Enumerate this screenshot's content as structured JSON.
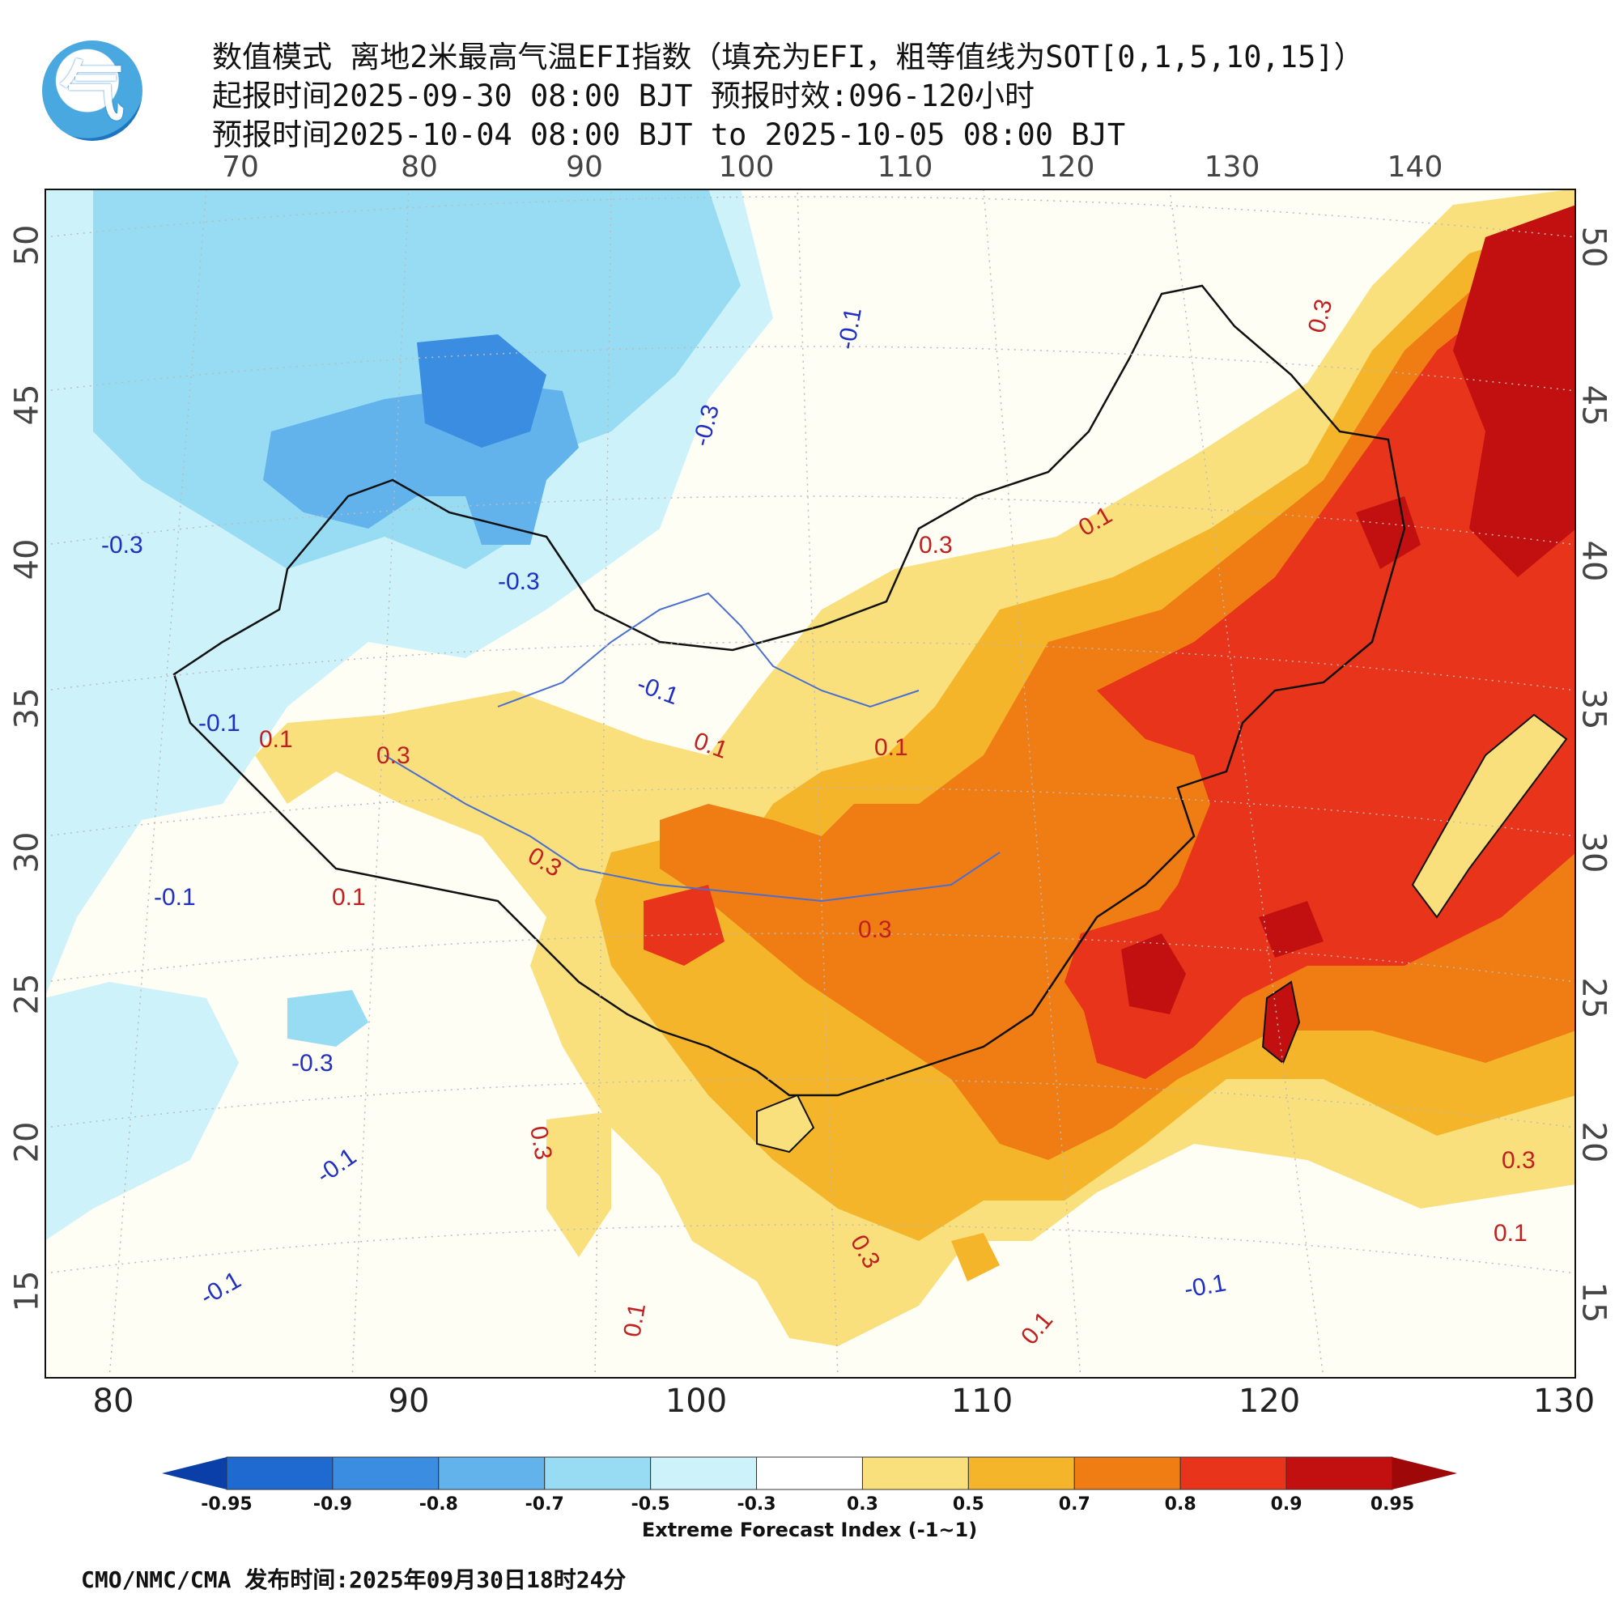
{
  "header": {
    "title_line1": "数值模式 离地2米最高气温EFI指数（填充为EFI，粗等值线为SOT[0,1,5,10,15]）",
    "title_line2": "起报时间2025-09-30 08:00 BJT 预报时效:096-120小时",
    "title_line3": "预报时间2025-10-04 08:00 BJT to 2025-10-05 08:00 BJT",
    "logo_icon": "cma-logo-icon",
    "logo_glyph": "气"
  },
  "axes": {
    "top_ticks": [
      "70",
      "80",
      "90",
      "100",
      "110",
      "120",
      "130",
      "140"
    ],
    "bottom_ticks": [
      "80",
      "90",
      "100",
      "110",
      "120",
      "130"
    ],
    "left_ticks": [
      "50",
      "45",
      "40",
      "35",
      "30",
      "25",
      "20",
      "15"
    ],
    "right_ticks": [
      "50",
      "45",
      "40",
      "35",
      "30",
      "25",
      "20",
      "15"
    ]
  },
  "contour_labels": [
    {
      "text": "-0.1",
      "color": "#2030c0"
    },
    {
      "text": "-0.3",
      "color": "#2030c0"
    },
    {
      "text": "-0.3",
      "color": "#2030c0"
    },
    {
      "text": "-0.3",
      "color": "#2030c0"
    },
    {
      "text": "-0.1",
      "color": "#2030c0"
    },
    {
      "text": "-0.1",
      "color": "#2030c0"
    },
    {
      "text": "-0.1",
      "color": "#2030c0"
    },
    {
      "text": "-0.3",
      "color": "#2030c0"
    },
    {
      "text": "-0.1",
      "color": "#2030c0"
    },
    {
      "text": "-0.1",
      "color": "#2030c0"
    },
    {
      "text": "-0.1",
      "color": "#2030c0"
    },
    {
      "text": "0.3",
      "color": "#c02020"
    },
    {
      "text": "0.1",
      "color": "#c02020"
    },
    {
      "text": "0.3",
      "color": "#c02020"
    },
    {
      "text": "0.1",
      "color": "#c02020"
    },
    {
      "text": "0.1",
      "color": "#c02020"
    },
    {
      "text": "0.1",
      "color": "#c02020"
    },
    {
      "text": "0.3",
      "color": "#c02020"
    },
    {
      "text": "0.1",
      "color": "#c02020"
    },
    {
      "text": "0.3",
      "color": "#c02020"
    },
    {
      "text": "0.3",
      "color": "#c02020"
    },
    {
      "text": "0.3",
      "color": "#c02020"
    },
    {
      "text": "0.3",
      "color": "#c02020"
    },
    {
      "text": "0.1",
      "color": "#c02020"
    },
    {
      "text": "0.1",
      "color": "#c02020"
    },
    {
      "text": "0.3",
      "color": "#c02020"
    },
    {
      "text": "0.1",
      "color": "#c02020"
    }
  ],
  "colorbar": {
    "labels": [
      "-0.95",
      "-0.9",
      "-0.8",
      "-0.7",
      "-0.5",
      "-0.3",
      "0.3",
      "0.5",
      "0.7",
      "0.8",
      "0.9",
      "0.95"
    ],
    "colors": [
      "#0a3fa8",
      "#1f6ad0",
      "#3a8de0",
      "#62b2ec",
      "#98dcf4",
      "#cdf2fa",
      "#ffffff",
      "#f9e07c",
      "#f5b52a",
      "#f07d14",
      "#e8341a",
      "#c21010",
      "#9e0808"
    ],
    "title": "Extreme Forecast Index (-1~1)"
  },
  "footer": {
    "text": "CMO/NMC/CMA 发布时间:2025年09月30日18时24分"
  }
}
